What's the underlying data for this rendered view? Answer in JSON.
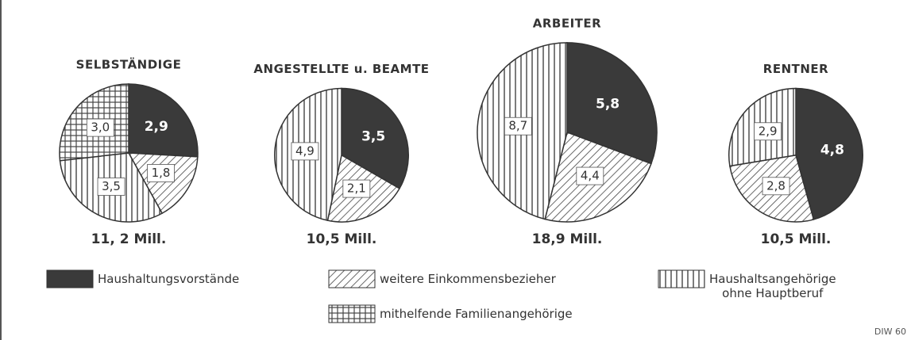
{
  "chart_data": [
    {
      "type": "pie",
      "title": "SELBSTÄNDIGE",
      "values": [
        2.9,
        1.8,
        3.5,
        3.0
      ],
      "value_labels": [
        "2,9",
        "1,8",
        "3,5",
        "3,0"
      ],
      "total": 11.2,
      "total_label": "11, 2 Mill."
    },
    {
      "type": "pie",
      "title": "ANGESTELLTE u. BEAMTE",
      "values": [
        3.5,
        2.1,
        4.9,
        null
      ],
      "value_labels": [
        "3,5",
        "2,1",
        "4,9",
        null
      ],
      "total": 10.5,
      "total_label": "10,5 Mill."
    },
    {
      "type": "pie",
      "title": "ARBEITER",
      "values": [
        5.8,
        4.4,
        8.7,
        null
      ],
      "value_labels": [
        "5,8",
        "4,4",
        "8,7",
        null
      ],
      "total": 18.9,
      "total_label": "18,9 Mill."
    },
    {
      "type": "pie",
      "title": "RENTNER",
      "values": [
        4.8,
        2.8,
        2.9,
        null
      ],
      "value_labels": [
        "4,8",
        "2,8",
        "2,9",
        null
      ],
      "total": 10.5,
      "total_label": "10,5 Mill."
    }
  ],
  "legend": [
    {
      "name": "Haushaltungsvorstände",
      "pattern": "solid"
    },
    {
      "name": "weitere Einkommensbezieher",
      "pattern": "diagonal"
    },
    {
      "name": "Haushaltsangehörige\nohne Hauptberuf",
      "pattern": "vertical"
    },
    {
      "name": "mithelfende Familienangehörige",
      "pattern": "grid"
    }
  ],
  "color": "#3a3a3a",
  "source": "DIW 60"
}
